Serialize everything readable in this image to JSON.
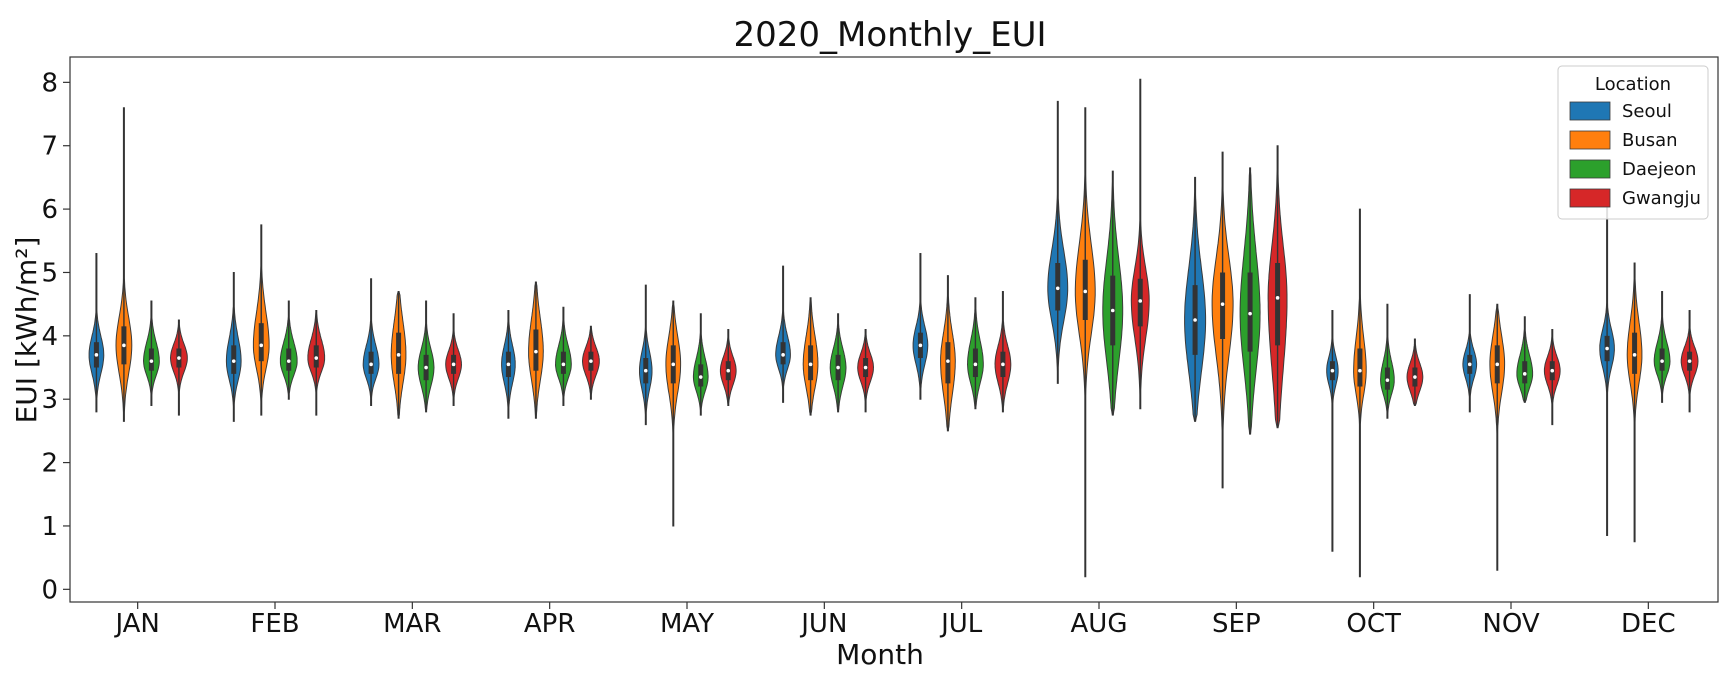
{
  "chart_data": {
    "type": "violin",
    "title": "2020_Monthly_EUI",
    "xlabel": "Month",
    "ylabel": "EUI [kWh/m²]",
    "ylim": [
      -0.2,
      8.4
    ],
    "yticks": [
      0,
      1,
      2,
      3,
      4,
      5,
      6,
      7,
      8
    ],
    "categories": [
      "JAN",
      "FEB",
      "MAR",
      "APR",
      "MAY",
      "JUN",
      "JUL",
      "AUG",
      "SEP",
      "OCT",
      "NOV",
      "DEC"
    ],
    "legend": {
      "title": "Location",
      "placement": "top-right"
    },
    "grid": false,
    "series": [
      {
        "name": "Seoul",
        "color": "#1f77b4",
        "values": [
          {
            "min": 2.8,
            "q1": 3.5,
            "median": 3.7,
            "q3": 3.9,
            "max": 5.3,
            "width": 0.7
          },
          {
            "min": 2.65,
            "q1": 3.4,
            "median": 3.6,
            "q3": 3.85,
            "max": 5.0,
            "width": 0.7
          },
          {
            "min": 2.9,
            "q1": 3.4,
            "median": 3.55,
            "q3": 3.75,
            "max": 4.9,
            "width": 0.75
          },
          {
            "min": 2.7,
            "q1": 3.35,
            "median": 3.55,
            "q3": 3.75,
            "max": 4.4,
            "width": 0.65
          },
          {
            "min": 2.6,
            "q1": 3.25,
            "median": 3.45,
            "q3": 3.65,
            "max": 4.8,
            "width": 0.6
          },
          {
            "min": 2.95,
            "q1": 3.55,
            "median": 3.7,
            "q3": 3.9,
            "max": 5.1,
            "width": 0.7
          },
          {
            "min": 3.0,
            "q1": 3.65,
            "median": 3.85,
            "q3": 4.05,
            "max": 5.3,
            "width": 0.7
          },
          {
            "min": 3.25,
            "q1": 4.4,
            "median": 4.75,
            "q3": 5.15,
            "max": 7.7,
            "width": 0.95
          },
          {
            "min": 2.65,
            "q1": 3.7,
            "median": 4.25,
            "q3": 4.8,
            "max": 6.5,
            "width": 1.0
          },
          {
            "min": 0.6,
            "q1": 3.3,
            "median": 3.45,
            "q3": 3.6,
            "max": 4.4,
            "width": 0.55
          },
          {
            "min": 2.8,
            "q1": 3.4,
            "median": 3.55,
            "q3": 3.7,
            "max": 4.65,
            "width": 0.65
          },
          {
            "min": 0.85,
            "q1": 3.6,
            "median": 3.8,
            "q3": 4.0,
            "max": 6.1,
            "width": 0.7
          }
        ]
      },
      {
        "name": "Busan",
        "color": "#ff7f0e",
        "values": [
          {
            "min": 2.65,
            "q1": 3.55,
            "median": 3.85,
            "q3": 4.15,
            "max": 7.6,
            "width": 0.75
          },
          {
            "min": 2.75,
            "q1": 3.6,
            "median": 3.85,
            "q3": 4.2,
            "max": 5.75,
            "width": 0.75
          },
          {
            "min": 2.7,
            "q1": 3.4,
            "median": 3.7,
            "q3": 4.05,
            "max": 4.7,
            "width": 0.7
          },
          {
            "min": 2.7,
            "q1": 3.45,
            "median": 3.75,
            "q3": 4.1,
            "max": 4.85,
            "width": 0.7
          },
          {
            "min": 1.0,
            "q1": 3.25,
            "median": 3.55,
            "q3": 3.85,
            "max": 4.55,
            "width": 0.7
          },
          {
            "min": 2.75,
            "q1": 3.3,
            "median": 3.55,
            "q3": 3.85,
            "max": 4.6,
            "width": 0.7
          },
          {
            "min": 2.5,
            "q1": 3.25,
            "median": 3.6,
            "q3": 3.9,
            "max": 4.95,
            "width": 0.7
          },
          {
            "min": 0.2,
            "q1": 4.25,
            "median": 4.7,
            "q3": 5.2,
            "max": 7.6,
            "width": 0.95
          },
          {
            "min": 1.6,
            "q1": 3.95,
            "median": 4.5,
            "q3": 5.0,
            "max": 6.9,
            "width": 1.0
          },
          {
            "min": 0.2,
            "q1": 3.2,
            "median": 3.45,
            "q3": 3.8,
            "max": 6.0,
            "width": 0.6
          },
          {
            "min": 0.3,
            "q1": 3.25,
            "median": 3.55,
            "q3": 3.85,
            "max": 4.5,
            "width": 0.7
          },
          {
            "min": 0.75,
            "q1": 3.4,
            "median": 3.7,
            "q3": 4.05,
            "max": 5.15,
            "width": 0.7
          }
        ]
      },
      {
        "name": "Daejeon",
        "color": "#2ca02c",
        "values": [
          {
            "min": 2.9,
            "q1": 3.45,
            "median": 3.6,
            "q3": 3.8,
            "max": 4.55,
            "width": 0.75
          },
          {
            "min": 3.0,
            "q1": 3.45,
            "median": 3.6,
            "q3": 3.8,
            "max": 4.55,
            "width": 0.8
          },
          {
            "min": 2.8,
            "q1": 3.3,
            "median": 3.5,
            "q3": 3.7,
            "max": 4.55,
            "width": 0.75
          },
          {
            "min": 2.9,
            "q1": 3.4,
            "median": 3.55,
            "q3": 3.75,
            "max": 4.45,
            "width": 0.75
          },
          {
            "min": 2.75,
            "q1": 3.2,
            "median": 3.35,
            "q3": 3.55,
            "max": 4.35,
            "width": 0.7
          },
          {
            "min": 2.8,
            "q1": 3.3,
            "median": 3.5,
            "q3": 3.7,
            "max": 4.35,
            "width": 0.75
          },
          {
            "min": 2.85,
            "q1": 3.35,
            "median": 3.55,
            "q3": 3.8,
            "max": 4.6,
            "width": 0.75
          },
          {
            "min": 2.75,
            "q1": 3.85,
            "median": 4.4,
            "q3": 4.95,
            "max": 6.6,
            "width": 0.95
          },
          {
            "min": 2.45,
            "q1": 3.75,
            "median": 4.35,
            "q3": 5.0,
            "max": 6.65,
            "width": 0.95
          },
          {
            "min": 2.7,
            "q1": 3.15,
            "median": 3.3,
            "q3": 3.5,
            "max": 4.5,
            "width": 0.65
          },
          {
            "min": 2.95,
            "q1": 3.25,
            "median": 3.4,
            "q3": 3.6,
            "max": 4.3,
            "width": 0.75
          },
          {
            "min": 2.95,
            "q1": 3.45,
            "median": 3.6,
            "q3": 3.8,
            "max": 4.7,
            "width": 0.75
          }
        ]
      },
      {
        "name": "Gwangju",
        "color": "#d62728",
        "values": [
          {
            "min": 2.75,
            "q1": 3.5,
            "median": 3.65,
            "q3": 3.8,
            "max": 4.25,
            "width": 0.8
          },
          {
            "min": 2.75,
            "q1": 3.5,
            "median": 3.65,
            "q3": 3.85,
            "max": 4.4,
            "width": 0.8
          },
          {
            "min": 2.9,
            "q1": 3.4,
            "median": 3.55,
            "q3": 3.7,
            "max": 4.35,
            "width": 0.75
          },
          {
            "min": 3.0,
            "q1": 3.45,
            "median": 3.6,
            "q3": 3.75,
            "max": 4.15,
            "width": 0.8
          },
          {
            "min": 2.9,
            "q1": 3.3,
            "median": 3.45,
            "q3": 3.6,
            "max": 4.1,
            "width": 0.75
          },
          {
            "min": 2.8,
            "q1": 3.35,
            "median": 3.5,
            "q3": 3.65,
            "max": 4.1,
            "width": 0.75
          },
          {
            "min": 2.8,
            "q1": 3.35,
            "median": 3.55,
            "q3": 3.75,
            "max": 4.7,
            "width": 0.75
          },
          {
            "min": 2.85,
            "q1": 4.15,
            "median": 4.55,
            "q3": 4.9,
            "max": 8.05,
            "width": 0.85
          },
          {
            "min": 2.55,
            "q1": 3.85,
            "median": 4.6,
            "q3": 5.15,
            "max": 7.0,
            "width": 0.9
          },
          {
            "min": 2.9,
            "q1": 3.2,
            "median": 3.35,
            "q3": 3.5,
            "max": 3.95,
            "width": 0.75
          },
          {
            "min": 2.6,
            "q1": 3.3,
            "median": 3.45,
            "q3": 3.6,
            "max": 4.1,
            "width": 0.75
          },
          {
            "min": 2.8,
            "q1": 3.45,
            "median": 3.6,
            "q3": 3.75,
            "max": 4.4,
            "width": 0.8
          }
        ]
      }
    ]
  }
}
